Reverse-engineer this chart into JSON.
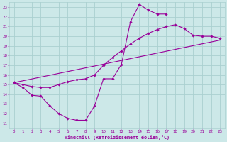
{
  "xlabel": "Windchill (Refroidissement éolien,°C)",
  "xlim": [
    -0.5,
    23.5
  ],
  "ylim": [
    10.5,
    23.5
  ],
  "xticks": [
    0,
    1,
    2,
    3,
    4,
    5,
    6,
    7,
    8,
    9,
    10,
    11,
    12,
    13,
    14,
    15,
    16,
    17,
    18,
    19,
    20,
    21,
    22,
    23
  ],
  "yticks": [
    11,
    12,
    13,
    14,
    15,
    16,
    17,
    18,
    19,
    20,
    21,
    22,
    23
  ],
  "bg_color": "#cce8e8",
  "grid_color": "#aad0d0",
  "line_color": "#990099",
  "curve1_x": [
    0,
    1,
    2,
    3,
    4,
    5,
    6,
    7,
    8,
    9,
    10,
    11,
    12,
    13,
    14,
    15,
    16,
    17
  ],
  "curve1_y": [
    15.2,
    14.7,
    13.9,
    13.8,
    12.8,
    12.0,
    11.5,
    11.3,
    11.3,
    12.8,
    15.6,
    15.6,
    17.1,
    21.5,
    23.3,
    22.7,
    22.3,
    22.3
  ],
  "curve2_x": [
    0,
    1,
    2,
    3,
    4,
    5,
    6,
    7,
    8,
    9,
    10,
    11,
    12,
    13,
    14,
    15,
    16,
    17,
    18,
    19,
    20,
    21,
    22,
    23
  ],
  "curve2_y": [
    15.2,
    15.0,
    14.8,
    14.7,
    14.7,
    15.0,
    15.3,
    15.5,
    15.6,
    16.0,
    17.0,
    17.8,
    18.5,
    19.2,
    19.8,
    20.3,
    20.7,
    21.0,
    21.2,
    20.8,
    20.1,
    20.0,
    20.0,
    19.8
  ],
  "curve3_x": [
    0,
    23
  ],
  "curve3_y": [
    15.2,
    19.6
  ]
}
